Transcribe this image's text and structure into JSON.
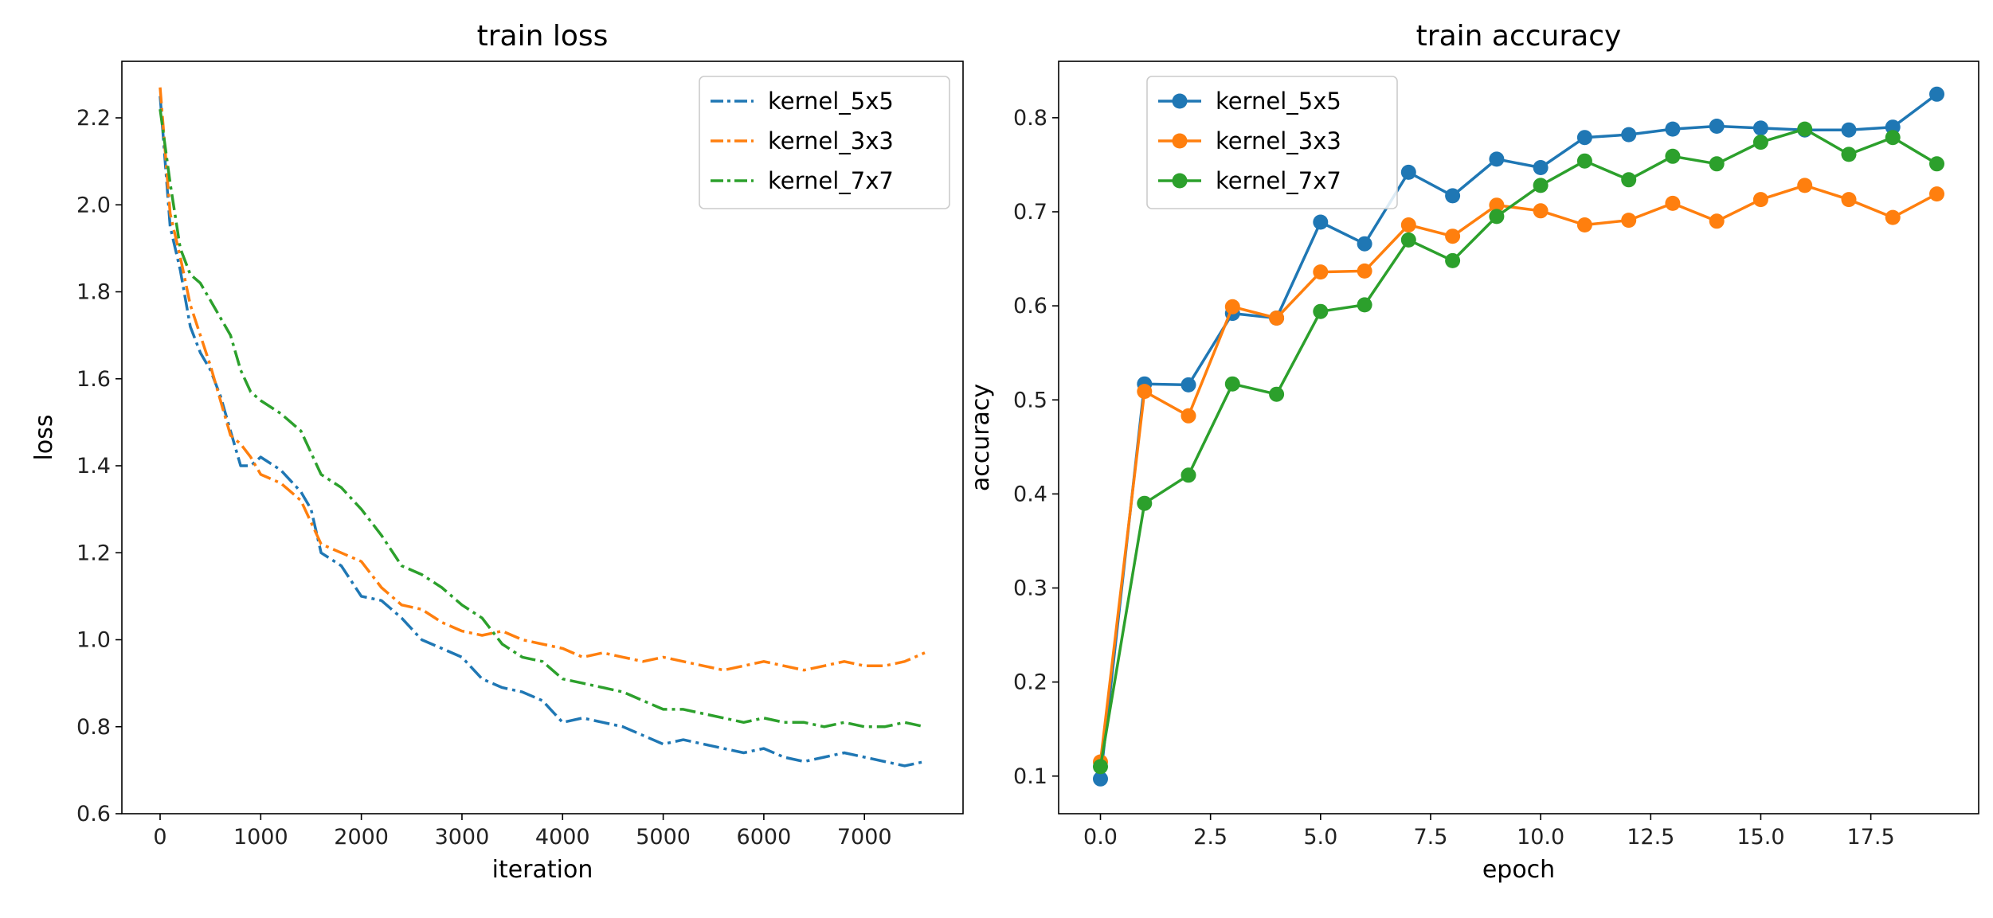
{
  "chart_data": [
    {
      "type": "line",
      "title": "train loss",
      "xlabel": "iteration",
      "ylabel": "loss",
      "xlim": [
        -380,
        7980
      ],
      "ylim": [
        0.6,
        2.33
      ],
      "xticks": [
        0,
        1000,
        2000,
        3000,
        4000,
        5000,
        6000,
        7000
      ],
      "yticks": [
        0.6,
        0.8,
        1.0,
        1.2,
        1.4,
        1.6,
        1.8,
        2.0,
        2.2
      ],
      "xtick_labels": [
        "0",
        "1000",
        "2000",
        "3000",
        "4000",
        "5000",
        "6000",
        "7000"
      ],
      "ytick_labels": [
        "0.6",
        "0.8",
        "1.0",
        "1.2",
        "1.4",
        "1.6",
        "1.8",
        "2.0",
        "2.2"
      ],
      "line_style": "dash-dot",
      "grid": false,
      "legend_position": "top-right",
      "series": [
        {
          "name": "kernel_5x5",
          "color": "#1f77b4",
          "x": [
            0,
            100,
            200,
            300,
            400,
            500,
            600,
            700,
            800,
            900,
            1000,
            1200,
            1400,
            1500,
            1600,
            1800,
            2000,
            2200,
            2400,
            2600,
            2800,
            3000,
            3200,
            3400,
            3600,
            3800,
            4000,
            4200,
            4400,
            4600,
            4800,
            5000,
            5200,
            5400,
            5600,
            5800,
            6000,
            6200,
            6400,
            6600,
            6800,
            7000,
            7200,
            7400,
            7600
          ],
          "y": [
            2.25,
            1.95,
            1.85,
            1.72,
            1.66,
            1.62,
            1.56,
            1.48,
            1.4,
            1.4,
            1.42,
            1.39,
            1.34,
            1.3,
            1.2,
            1.17,
            1.1,
            1.09,
            1.05,
            1.0,
            0.98,
            0.96,
            0.91,
            0.89,
            0.88,
            0.86,
            0.81,
            0.82,
            0.81,
            0.8,
            0.78,
            0.76,
            0.77,
            0.76,
            0.75,
            0.74,
            0.75,
            0.73,
            0.72,
            0.73,
            0.74,
            0.73,
            0.72,
            0.71,
            0.72
          ]
        },
        {
          "name": "kernel_3x3",
          "color": "#ff7f0e",
          "x": [
            0,
            100,
            200,
            300,
            400,
            500,
            600,
            700,
            800,
            900,
            1000,
            1200,
            1400,
            1600,
            1800,
            2000,
            2200,
            2400,
            2600,
            2800,
            3000,
            3200,
            3400,
            3600,
            3800,
            4000,
            4200,
            4400,
            4600,
            4800,
            5000,
            5200,
            5400,
            5600,
            5800,
            6000,
            6200,
            6400,
            6600,
            6800,
            7000,
            7200,
            7400,
            7600
          ],
          "y": [
            2.27,
            1.98,
            1.88,
            1.77,
            1.7,
            1.63,
            1.55,
            1.47,
            1.45,
            1.42,
            1.38,
            1.36,
            1.32,
            1.22,
            1.2,
            1.18,
            1.12,
            1.08,
            1.07,
            1.04,
            1.02,
            1.01,
            1.02,
            1.0,
            0.99,
            0.98,
            0.96,
            0.97,
            0.96,
            0.95,
            0.96,
            0.95,
            0.94,
            0.93,
            0.94,
            0.95,
            0.94,
            0.93,
            0.94,
            0.95,
            0.94,
            0.94,
            0.95,
            0.97
          ]
        },
        {
          "name": "kernel_7x7",
          "color": "#2ca02c",
          "x": [
            0,
            100,
            200,
            300,
            400,
            500,
            600,
            700,
            800,
            900,
            1000,
            1200,
            1400,
            1600,
            1800,
            2000,
            2200,
            2400,
            2600,
            2800,
            3000,
            3200,
            3400,
            3600,
            3800,
            4000,
            4200,
            4400,
            4600,
            4800,
            5000,
            5200,
            5400,
            5600,
            5800,
            6000,
            6200,
            6400,
            6600,
            6800,
            7000,
            7200,
            7400,
            7600
          ],
          "y": [
            2.22,
            2.05,
            1.9,
            1.84,
            1.82,
            1.78,
            1.74,
            1.7,
            1.62,
            1.57,
            1.55,
            1.52,
            1.48,
            1.38,
            1.35,
            1.3,
            1.24,
            1.17,
            1.15,
            1.12,
            1.08,
            1.05,
            0.99,
            0.96,
            0.95,
            0.91,
            0.9,
            0.89,
            0.88,
            0.86,
            0.84,
            0.84,
            0.83,
            0.82,
            0.81,
            0.82,
            0.81,
            0.81,
            0.8,
            0.81,
            0.8,
            0.8,
            0.81,
            0.8
          ]
        }
      ]
    },
    {
      "type": "line",
      "title": "train accuracy",
      "xlabel": "epoch",
      "ylabel": "accuracy",
      "xlim": [
        -0.95,
        19.95
      ],
      "ylim": [
        0.06,
        0.86
      ],
      "xticks": [
        0,
        2.5,
        5,
        7.5,
        10,
        12.5,
        15,
        17.5
      ],
      "yticks": [
        0.1,
        0.2,
        0.3,
        0.4,
        0.5,
        0.6,
        0.7,
        0.8
      ],
      "xtick_labels": [
        "0.0",
        "2.5",
        "5.0",
        "7.5",
        "10.0",
        "12.5",
        "15.0",
        "17.5"
      ],
      "ytick_labels": [
        "0.1",
        "0.2",
        "0.3",
        "0.4",
        "0.5",
        "0.6",
        "0.7",
        "0.8"
      ],
      "markers": "circle",
      "grid": false,
      "legend_position": "top-left",
      "x": [
        0,
        1,
        2,
        3,
        4,
        5,
        6,
        7,
        8,
        9,
        10,
        11,
        12,
        13,
        14,
        15,
        16,
        17,
        18,
        19
      ],
      "series": [
        {
          "name": "kernel_5x5",
          "color": "#1f77b4",
          "values": [
            0.097,
            0.517,
            0.516,
            0.592,
            0.587,
            0.689,
            0.666,
            0.742,
            0.717,
            0.756,
            0.747,
            0.779,
            0.782,
            0.788,
            0.791,
            0.789,
            0.787,
            0.787,
            0.79,
            0.825
          ]
        },
        {
          "name": "kernel_3x3",
          "color": "#ff7f0e",
          "values": [
            0.115,
            0.509,
            0.483,
            0.599,
            0.587,
            0.636,
            0.637,
            0.686,
            0.674,
            0.707,
            0.701,
            0.686,
            0.691,
            0.709,
            0.69,
            0.713,
            0.728,
            0.713,
            0.694,
            0.719
          ]
        },
        {
          "name": "kernel_7x7",
          "color": "#2ca02c",
          "values": [
            0.11,
            0.39,
            0.42,
            0.517,
            0.506,
            0.594,
            0.601,
            0.67,
            0.648,
            0.695,
            0.728,
            0.754,
            0.734,
            0.759,
            0.751,
            0.774,
            0.788,
            0.761,
            0.779,
            0.751
          ]
        }
      ]
    }
  ]
}
